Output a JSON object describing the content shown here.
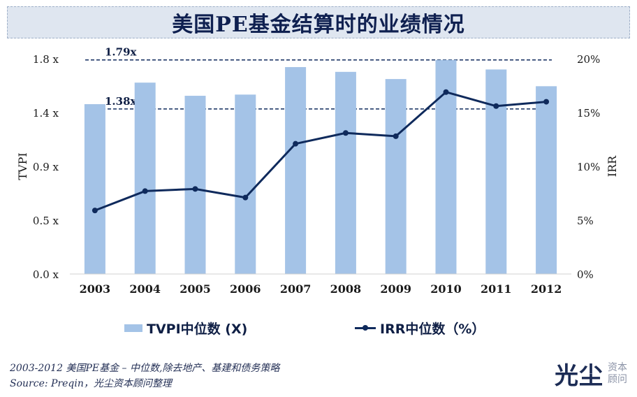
{
  "header": {
    "title": "美国PE基金结算时的业绩情况"
  },
  "chart_data": {
    "type": "bar",
    "title": "美国PE基金结算时的业绩情况",
    "categories": [
      "2003",
      "2004",
      "2005",
      "2006",
      "2007",
      "2008",
      "2009",
      "2010",
      "2011",
      "2012"
    ],
    "series": [
      {
        "name": "TVPI中位数 (X)",
        "type": "bar",
        "axis": "left",
        "values": [
          1.42,
          1.6,
          1.49,
          1.5,
          1.73,
          1.69,
          1.63,
          1.79,
          1.71,
          1.57
        ]
      },
      {
        "name": "IRR中位数（%）",
        "type": "line",
        "axis": "right",
        "values": [
          5.9,
          7.7,
          7.9,
          7.1,
          12.1,
          13.1,
          12.8,
          16.9,
          15.6,
          16.0
        ]
      }
    ],
    "ylabel_left": "TVPI",
    "ylabel_right": "IRR",
    "left_ticks": [
      "0.0 x",
      "0.5 x",
      "0.9 x",
      "1.4 x",
      "1.8 x"
    ],
    "right_ticks": [
      "0%",
      "5%",
      "10%",
      "15%",
      "20%"
    ],
    "ylim_left": [
      0,
      1.8
    ],
    "ylim_right": [
      0,
      20
    ],
    "reference_lines": [
      {
        "label": "1.79x",
        "value": 1.79
      },
      {
        "label": "1.38x",
        "value": 1.38
      }
    ],
    "legend_position": "bottom"
  },
  "legend": {
    "bar_label": "TVPI中位数 (X)",
    "line_label": "IRR中位数（%）"
  },
  "footnote": {
    "line1": "2003-2012 美国PE基金 – 中位数,除去地产、基建和债务策略",
    "line2": "Source: Preqin，光尘资本顾问整理"
  },
  "logo": {
    "main": "光尘",
    "sub1": "资本",
    "sub2": "顾问"
  },
  "colors": {
    "bar": "#a4c3e7",
    "line": "#0f2a5c",
    "title_bg": "#dfe6f0",
    "text": "#0f1f45"
  }
}
